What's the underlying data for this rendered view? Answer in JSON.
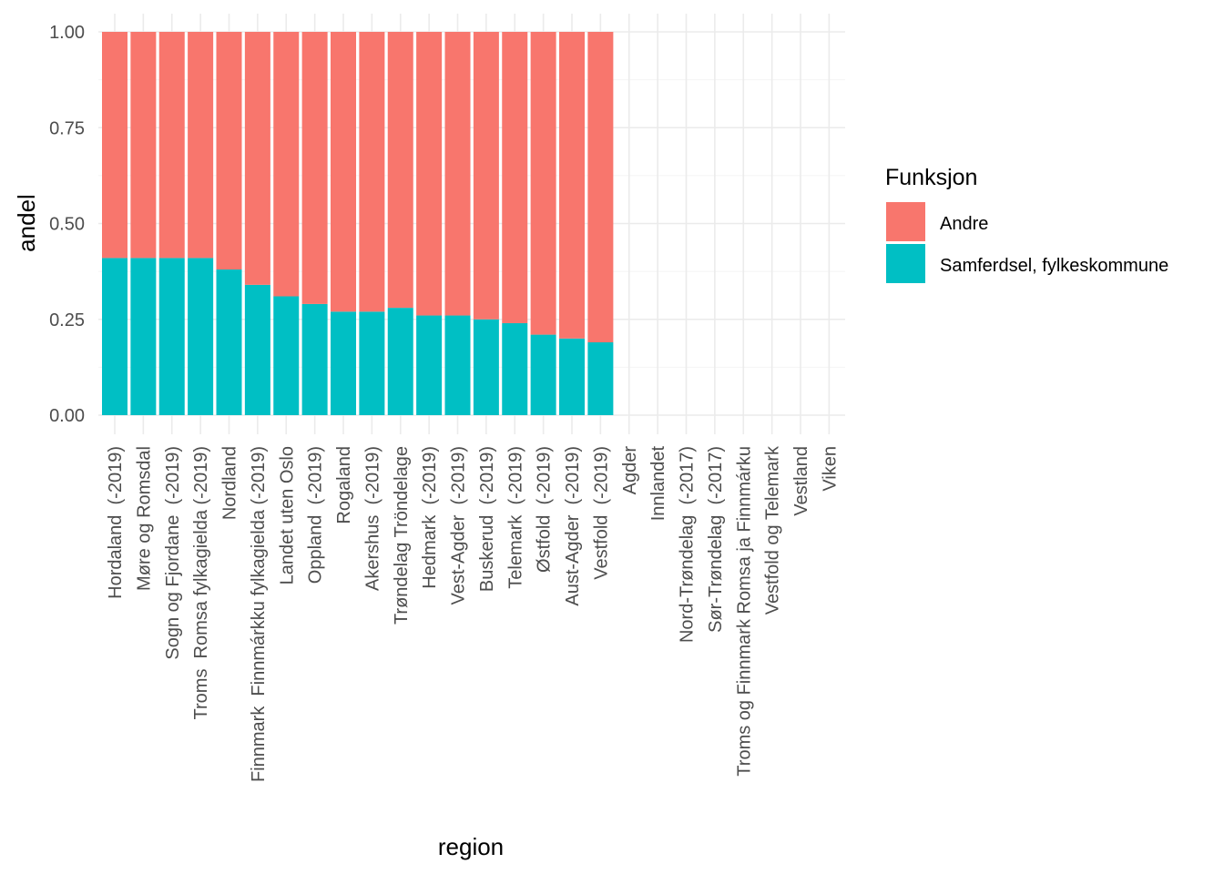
{
  "chart_data": {
    "type": "bar",
    "stacked": true,
    "title": "",
    "xlabel": "region",
    "ylabel": "andel",
    "ylim": [
      0,
      1
    ],
    "yticks": [
      "0.00",
      "0.25",
      "0.50",
      "0.75",
      "1.00"
    ],
    "ytick_values": [
      0,
      0.25,
      0.5,
      0.75,
      1.0
    ],
    "grid": true,
    "legend_position": "right",
    "legend_title": "Funksjon",
    "categories": [
      "Hordaland  (-2019)",
      "Møre og Romsdal",
      "Sogn og Fjordane  (-2019)",
      "Troms  Romsa fylkagielda (-2019)",
      "Nordland",
      "Finnmark  Finnmárkku fylkagielda (-2019)",
      "Landet uten Oslo",
      "Oppland  (-2019)",
      "Rogaland",
      "Akershus  (-2019)",
      "Trøndelag Tröndelage",
      "Hedmark  (-2019)",
      "Vest-Agder  (-2019)",
      "Buskerud  (-2019)",
      "Telemark  (-2019)",
      "Østfold  (-2019)",
      "Aust-Agder  (-2019)",
      "Vestfold  (-2019)",
      "Agder",
      "Innlandet",
      "Nord-Trøndelag  (-2017)",
      "Sør-Trøndelag  (-2017)",
      "Troms og Finnmark Romsa ja Finnmárku",
      "Vestfold og Telemark",
      "Vestland",
      "Viken"
    ],
    "series": [
      {
        "name": "Samferdsel, fylkeskommune",
        "color": "#00BFC4",
        "values": [
          0.41,
          0.41,
          0.41,
          0.41,
          0.38,
          0.34,
          0.31,
          0.29,
          0.27,
          0.27,
          0.28,
          0.26,
          0.26,
          0.25,
          0.24,
          0.21,
          0.2,
          0.19,
          null,
          null,
          null,
          null,
          null,
          null,
          null,
          null
        ]
      },
      {
        "name": "Andre",
        "color": "#F8766D",
        "values": [
          0.59,
          0.59,
          0.59,
          0.59,
          0.62,
          0.66,
          0.69,
          0.71,
          0.73,
          0.73,
          0.72,
          0.74,
          0.74,
          0.75,
          0.76,
          0.79,
          0.8,
          0.81,
          null,
          null,
          null,
          null,
          null,
          null,
          null,
          null
        ]
      }
    ],
    "legend": [
      {
        "label": "Andre",
        "color": "#F8766D"
      },
      {
        "label": "Samferdsel, fylkeskommune",
        "color": "#00BFC4"
      }
    ]
  }
}
